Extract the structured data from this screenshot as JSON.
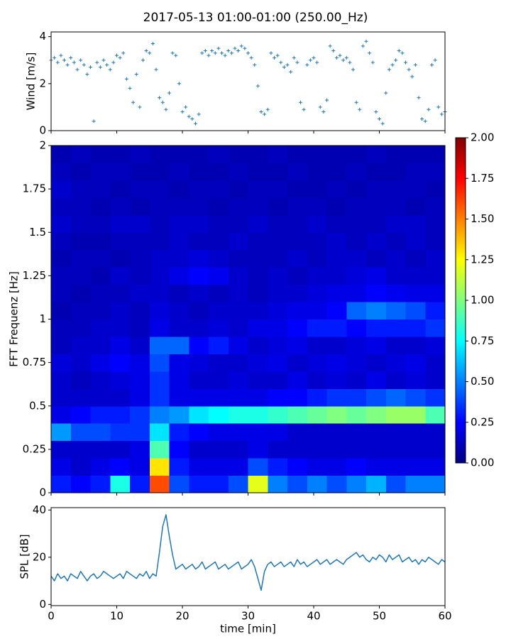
{
  "chart_data": [
    {
      "type": "scatter",
      "title": "2017-05-13 01:00-01:00 (250.00_Hz)",
      "ylabel": "Wind [m/s]",
      "color": "#1f77b4",
      "xlim": [
        0,
        60
      ],
      "ylim": [
        0,
        4.2
      ],
      "yticks": [
        0,
        2,
        4
      ],
      "x": [
        0,
        0.5,
        1,
        1.5,
        2,
        2.5,
        3,
        3.5,
        4,
        4.5,
        5,
        5.5,
        6,
        6.5,
        7,
        7.5,
        8,
        8.5,
        9,
        9.5,
        10,
        10.5,
        11,
        11.5,
        12,
        12.5,
        13,
        13.5,
        14,
        14.5,
        15,
        15.5,
        16,
        16.5,
        17,
        17.5,
        18,
        18.5,
        19,
        19.5,
        20,
        20.5,
        21,
        21.5,
        22,
        22.5,
        23,
        23.5,
        24,
        24.5,
        25,
        25.5,
        26,
        26.5,
        27,
        27.5,
        28,
        28.5,
        29,
        29.5,
        30,
        30.5,
        31,
        31.5,
        32,
        32.5,
        33,
        33.5,
        34,
        34.5,
        35,
        35.5,
        36,
        36.5,
        37,
        37.5,
        38,
        38.5,
        39,
        39.5,
        40,
        40.5,
        41,
        41.5,
        42,
        42.5,
        43,
        43.5,
        44,
        44.5,
        45,
        45.5,
        46,
        46.5,
        47,
        47.5,
        48,
        48.5,
        49,
        49.5,
        50,
        50.5,
        51,
        51.5,
        52,
        52.5,
        53,
        53.5,
        54,
        54.5,
        55,
        55.5,
        56,
        56.5,
        57,
        57.5,
        58,
        58.5,
        59,
        59.5,
        60
      ],
      "values": [
        3.0,
        3.1,
        2.9,
        3.2,
        3.0,
        2.8,
        3.1,
        2.9,
        2.6,
        3.0,
        2.8,
        2.4,
        2.7,
        0.4,
        2.9,
        2.7,
        3.0,
        2.8,
        2.6,
        2.9,
        3.2,
        3.1,
        3.3,
        2.2,
        1.8,
        1.2,
        2.4,
        1.0,
        3.0,
        3.4,
        3.3,
        3.7,
        2.6,
        1.4,
        1.2,
        0.9,
        1.6,
        3.3,
        3.2,
        2.0,
        0.8,
        1.0,
        0.6,
        0.5,
        0.3,
        0.7,
        3.3,
        3.4,
        3.2,
        3.4,
        3.3,
        3.5,
        3.3,
        3.2,
        3.4,
        3.3,
        3.5,
        3.4,
        3.6,
        3.5,
        3.3,
        3.1,
        2.8,
        1.9,
        0.8,
        0.7,
        0.9,
        3.3,
        3.1,
        3.2,
        2.9,
        2.7,
        2.8,
        2.5,
        3.1,
        2.9,
        1.2,
        0.9,
        2.8,
        3.0,
        3.1,
        2.9,
        1.0,
        0.8,
        1.3,
        3.6,
        3.4,
        3.1,
        3.2,
        3.0,
        3.1,
        2.9,
        2.6,
        1.2,
        0.9,
        3.6,
        3.8,
        3.3,
        2.9,
        0.8,
        0.5,
        0.3,
        1.6,
        2.6,
        2.8,
        3.0,
        3.4,
        3.3,
        2.9,
        2.6,
        2.3,
        2.8,
        1.4,
        0.5,
        0.4,
        0.9,
        2.8,
        3.0,
        1.0,
        0.7,
        0.8
      ]
    },
    {
      "type": "heatmap",
      "ylabel": "FFT Frequenz [Hz]",
      "colormap": "jet",
      "xlim": [
        0,
        60
      ],
      "ylim": [
        0,
        2
      ],
      "yticks": [
        0,
        0.25,
        0.5,
        0.75,
        1,
        1.25,
        1.5,
        1.75,
        2
      ],
      "zlim": [
        0,
        2
      ],
      "zticks": [
        {
          "value": 0,
          "label": "0.00"
        },
        {
          "value": 0.25,
          "label": "0.25"
        },
        {
          "value": 0.5,
          "label": "0.50"
        },
        {
          "value": 0.75,
          "label": "0.75"
        },
        {
          "value": 1,
          "label": "1.00"
        },
        {
          "value": 1.25,
          "label": "1.25"
        },
        {
          "value": 1.5,
          "label": "1.50"
        },
        {
          "value": 1.75,
          "label": "1.75"
        },
        {
          "value": 2,
          "label": "2.00"
        }
      ],
      "xbins": [
        0,
        3,
        6,
        9,
        12,
        15,
        18,
        21,
        24,
        27,
        30,
        33,
        36,
        39,
        42,
        45,
        48,
        51,
        54,
        57,
        60
      ],
      "ybins": [
        0,
        0.1,
        0.2,
        0.3,
        0.4,
        0.5,
        0.6,
        0.7,
        0.8,
        0.9,
        1.0,
        1.1,
        1.2,
        1.3,
        1.4,
        1.5,
        1.6,
        1.7,
        1.8,
        1.9,
        2.0
      ],
      "z": [
        [
          0.3,
          0.25,
          0.3,
          0.8,
          0.3,
          1.6,
          0.4,
          0.3,
          0.3,
          0.4,
          1.2,
          0.5,
          0.4,
          0.5,
          0.4,
          0.5,
          0.6,
          0.4,
          0.5,
          0.5
        ],
        [
          0.2,
          0.15,
          0.2,
          0.25,
          0.2,
          1.3,
          0.3,
          0.2,
          0.2,
          0.2,
          0.4,
          0.3,
          0.25,
          0.2,
          0.2,
          0.25,
          0.2,
          0.2,
          0.2,
          0.2
        ],
        [
          0.15,
          0.15,
          0.15,
          0.15,
          0.2,
          0.9,
          0.25,
          0.15,
          0.15,
          0.15,
          0.2,
          0.15,
          0.15,
          0.15,
          0.15,
          0.15,
          0.15,
          0.15,
          0.15,
          0.15
        ],
        [
          0.55,
          0.4,
          0.4,
          0.35,
          0.35,
          0.7,
          0.3,
          0.25,
          0.2,
          0.2,
          0.2,
          0.2,
          0.15,
          0.15,
          0.15,
          0.15,
          0.15,
          0.15,
          0.15,
          0.15
        ],
        [
          0.2,
          0.25,
          0.3,
          0.3,
          0.35,
          0.5,
          0.55,
          0.7,
          0.75,
          0.8,
          0.8,
          0.85,
          0.9,
          0.95,
          1.0,
          0.95,
          1.0,
          1.05,
          1.05,
          0.9
        ],
        [
          0.15,
          0.15,
          0.15,
          0.15,
          0.2,
          0.35,
          0.2,
          0.2,
          0.2,
          0.2,
          0.2,
          0.25,
          0.25,
          0.3,
          0.35,
          0.35,
          0.4,
          0.45,
          0.4,
          0.35
        ],
        [
          0.15,
          0.12,
          0.15,
          0.18,
          0.2,
          0.35,
          0.2,
          0.15,
          0.15,
          0.18,
          0.15,
          0.15,
          0.2,
          0.15,
          0.18,
          0.15,
          0.2,
          0.15,
          0.18,
          0.15
        ],
        [
          0.18,
          0.15,
          0.2,
          0.25,
          0.2,
          0.4,
          0.2,
          0.18,
          0.15,
          0.15,
          0.18,
          0.2,
          0.15,
          0.18,
          0.2,
          0.18,
          0.15,
          0.18,
          0.2,
          0.15
        ],
        [
          0.12,
          0.15,
          0.15,
          0.2,
          0.15,
          0.45,
          0.45,
          0.25,
          0.3,
          0.2,
          0.15,
          0.18,
          0.2,
          0.15,
          0.15,
          0.18,
          0.2,
          0.15,
          0.15,
          0.18
        ],
        [
          0.12,
          0.12,
          0.15,
          0.15,
          0.12,
          0.2,
          0.15,
          0.15,
          0.18,
          0.15,
          0.2,
          0.2,
          0.25,
          0.3,
          0.3,
          0.25,
          0.3,
          0.3,
          0.3,
          0.35
        ],
        [
          0.1,
          0.12,
          0.12,
          0.15,
          0.12,
          0.18,
          0.15,
          0.12,
          0.15,
          0.15,
          0.15,
          0.18,
          0.2,
          0.2,
          0.25,
          0.45,
          0.5,
          0.45,
          0.4,
          0.3
        ],
        [
          0.12,
          0.1,
          0.12,
          0.12,
          0.15,
          0.15,
          0.12,
          0.15,
          0.12,
          0.15,
          0.12,
          0.15,
          0.15,
          0.18,
          0.2,
          0.2,
          0.25,
          0.22,
          0.2,
          0.2
        ],
        [
          0.12,
          0.12,
          0.1,
          0.15,
          0.12,
          0.15,
          0.2,
          0.25,
          0.22,
          0.15,
          0.12,
          0.15,
          0.12,
          0.15,
          0.15,
          0.18,
          0.2,
          0.15,
          0.15,
          0.15
        ],
        [
          0.1,
          0.12,
          0.12,
          0.1,
          0.12,
          0.15,
          0.15,
          0.18,
          0.15,
          0.12,
          0.12,
          0.12,
          0.15,
          0.12,
          0.15,
          0.15,
          0.12,
          0.15,
          0.12,
          0.15
        ],
        [
          0.12,
          0.1,
          0.1,
          0.12,
          0.12,
          0.12,
          0.15,
          0.12,
          0.12,
          0.15,
          0.12,
          0.12,
          0.12,
          0.12,
          0.15,
          0.12,
          0.15,
          0.12,
          0.15,
          0.12
        ],
        [
          0.15,
          0.12,
          0.12,
          0.15,
          0.15,
          0.12,
          0.15,
          0.15,
          0.12,
          0.12,
          0.15,
          0.12,
          0.12,
          0.15,
          0.12,
          0.12,
          0.12,
          0.15,
          0.15,
          0.12
        ],
        [
          0.12,
          0.12,
          0.1,
          0.12,
          0.1,
          0.12,
          0.12,
          0.12,
          0.1,
          0.12,
          0.12,
          0.1,
          0.12,
          0.12,
          0.1,
          0.12,
          0.12,
          0.12,
          0.1,
          0.12
        ],
        [
          0.15,
          0.12,
          0.12,
          0.1,
          0.12,
          0.12,
          0.1,
          0.12,
          0.12,
          0.1,
          0.12,
          0.12,
          0.1,
          0.1,
          0.12,
          0.1,
          0.12,
          0.12,
          0.12,
          0.1
        ],
        [
          0.12,
          0.1,
          0.12,
          0.12,
          0.1,
          0.1,
          0.12,
          0.1,
          0.1,
          0.12,
          0.1,
          0.1,
          0.12,
          0.1,
          0.1,
          0.12,
          0.1,
          0.1,
          0.12,
          0.12
        ],
        [
          0.1,
          0.12,
          0.1,
          0.1,
          0.12,
          0.1,
          0.1,
          0.1,
          0.12,
          0.1,
          0.1,
          0.12,
          0.1,
          0.1,
          0.1,
          0.1,
          0.12,
          0.1,
          0.1,
          0.1
        ]
      ]
    },
    {
      "type": "line",
      "ylabel": "SPL [dB]",
      "xlabel": "time [min]",
      "color": "#1f77b4",
      "xlim": [
        0,
        60
      ],
      "ylim": [
        -0.5,
        41
      ],
      "yticks": [
        0,
        20,
        40
      ],
      "xticks": [
        0,
        10,
        20,
        30,
        40,
        50,
        60
      ],
      "x": [
        0,
        0.5,
        1,
        1.5,
        2,
        2.5,
        3,
        3.5,
        4,
        4.5,
        5,
        5.5,
        6,
        6.5,
        7,
        7.5,
        8,
        8.5,
        9,
        9.5,
        10,
        10.5,
        11,
        11.5,
        12,
        12.5,
        13,
        13.5,
        14,
        14.5,
        15,
        15.5,
        16,
        16.5,
        17,
        17.5,
        18,
        18.5,
        19,
        19.5,
        20,
        20.5,
        21,
        21.5,
        22,
        22.5,
        23,
        23.5,
        24,
        24.5,
        25,
        25.5,
        26,
        26.5,
        27,
        27.5,
        28,
        28.5,
        29,
        29.5,
        30,
        30.5,
        31,
        31.5,
        32,
        32.5,
        33,
        33.5,
        34,
        34.5,
        35,
        35.5,
        36,
        36.5,
        37,
        37.5,
        38,
        38.5,
        39,
        39.5,
        40,
        40.5,
        41,
        41.5,
        42,
        42.5,
        43,
        43.5,
        44,
        44.5,
        45,
        45.5,
        46,
        46.5,
        47,
        47.5,
        48,
        48.5,
        49,
        49.5,
        50,
        50.5,
        51,
        51.5,
        52,
        52.5,
        53,
        53.5,
        54,
        54.5,
        55,
        55.5,
        56,
        56.5,
        57,
        57.5,
        58,
        58.5,
        59,
        59.5,
        60
      ],
      "values": [
        12,
        10,
        13,
        11,
        12,
        10,
        13,
        12,
        11,
        14,
        12,
        10,
        12,
        13,
        11,
        12,
        14,
        13,
        12,
        11,
        12,
        13,
        11,
        14,
        13,
        12,
        11,
        13,
        12,
        14,
        11,
        13,
        12,
        22,
        33,
        38,
        29,
        21,
        15,
        16,
        17,
        15,
        16,
        17,
        15,
        16,
        18,
        15,
        16,
        17,
        18,
        15,
        16,
        17,
        15,
        16,
        17,
        18,
        15,
        16,
        17,
        19,
        16,
        11,
        6,
        14,
        17,
        18,
        16,
        17,
        18,
        16,
        17,
        18,
        16,
        19,
        17,
        18,
        16,
        17,
        18,
        19,
        17,
        18,
        19,
        17,
        18,
        19,
        18,
        17,
        19,
        20,
        21,
        22,
        20,
        21,
        19,
        18,
        20,
        19,
        21,
        20,
        18,
        21,
        19,
        20,
        21,
        18,
        19,
        20,
        18,
        19,
        17,
        19,
        18,
        20,
        19,
        18,
        17,
        19,
        18
      ]
    }
  ]
}
